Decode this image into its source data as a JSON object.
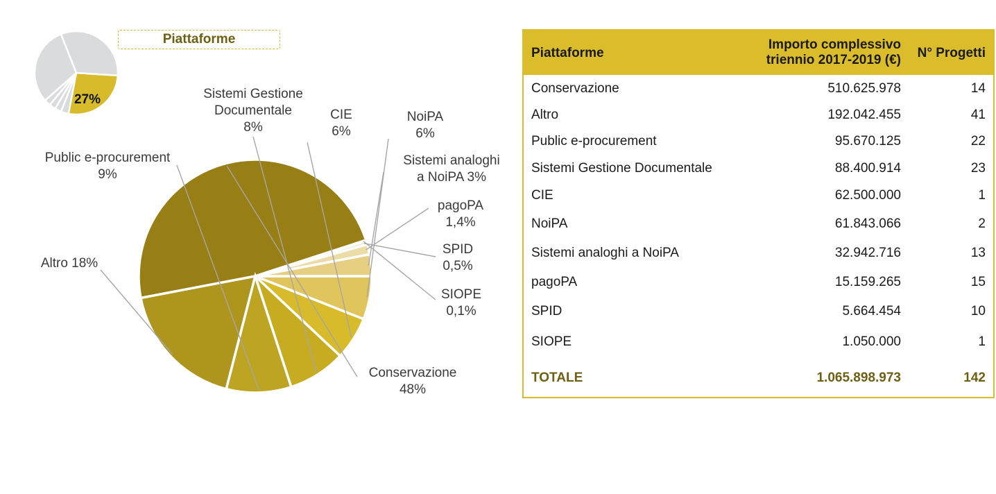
{
  "mini_pie": {
    "highlight_label": "27%",
    "highlight_value": 27
  },
  "title_box": "Piattaforme",
  "chart_data": {
    "type": "pie",
    "title": "Piattaforme",
    "slices": [
      {
        "name": "Conservazione",
        "value": 48,
        "label_lines": [
          "Conservazione",
          "48%"
        ],
        "color": "#977f16"
      },
      {
        "name": "Altro",
        "value": 18,
        "label_lines": [
          "Altro 18%"
        ],
        "color": "#ae961e"
      },
      {
        "name": "Public e-procurement",
        "value": 9,
        "label_lines": [
          "Public e-procurement",
          "9%"
        ],
        "color": "#bda422"
      },
      {
        "name": "Sistemi Gestione Documentale",
        "value": 8,
        "label_lines": [
          "Sistemi Gestione",
          "Documentale",
          "8%"
        ],
        "color": "#c7ac22"
      },
      {
        "name": "CIE",
        "value": 6,
        "label_lines": [
          "CIE",
          "6%"
        ],
        "color": "#d8bb2a"
      },
      {
        "name": "NoiPA",
        "value": 6,
        "label_lines": [
          "NoiPA",
          "6%"
        ],
        "color": "#e0c45c"
      },
      {
        "name": "Sistemi analoghi a NoiPA",
        "value": 3,
        "label_lines": [
          "Sistemi analoghi",
          "a NoiPA 3%"
        ],
        "color": "#e6cf82"
      },
      {
        "name": "pagoPA",
        "value": 1.4,
        "label_lines": [
          "pagoPA",
          "1,4%"
        ],
        "color": "#ecdca8"
      },
      {
        "name": "SPID",
        "value": 0.5,
        "label_lines": [
          "SPID",
          "0,5%"
        ],
        "color": "#f1e7c6"
      },
      {
        "name": "SIOPE",
        "value": 0.1,
        "label_lines": [
          "SIOPE",
          "0,1%"
        ],
        "color": "#f4eed8"
      }
    ]
  },
  "table": {
    "headers": {
      "col1": "Piattaforme",
      "col2_line1": "Importo complessivo",
      "col2_line2": "triennio 2017-2019 (€)",
      "col3": "N° Progetti"
    },
    "rows": [
      {
        "name": "Conservazione",
        "amount": "510.625.978",
        "projects": "14"
      },
      {
        "name": "Altro",
        "amount": "192.042.455",
        "projects": "41"
      },
      {
        "name": "Public e-procurement",
        "amount": "95.670.125",
        "projects": "22"
      },
      {
        "name": "Sistemi Gestione Documentale",
        "amount": "88.400.914",
        "projects": "23"
      },
      {
        "name": "CIE",
        "amount": "62.500.000",
        "projects": "1"
      },
      {
        "name": "NoiPA",
        "amount": "61.843.066",
        "projects": "2"
      },
      {
        "name": "Sistemi analoghi a NoiPA",
        "amount": "32.942.716",
        "projects": "13"
      },
      {
        "name": "pagoPA",
        "amount": "15.159.265",
        "projects": "15"
      },
      {
        "name": "SPID",
        "amount": "5.664.454",
        "projects": "10"
      },
      {
        "name": "SIOPE",
        "amount": "1.050.000",
        "projects": "1"
      }
    ],
    "total": {
      "name": "TOTALE",
      "amount": "1.065.898.973",
      "projects": "142"
    }
  }
}
